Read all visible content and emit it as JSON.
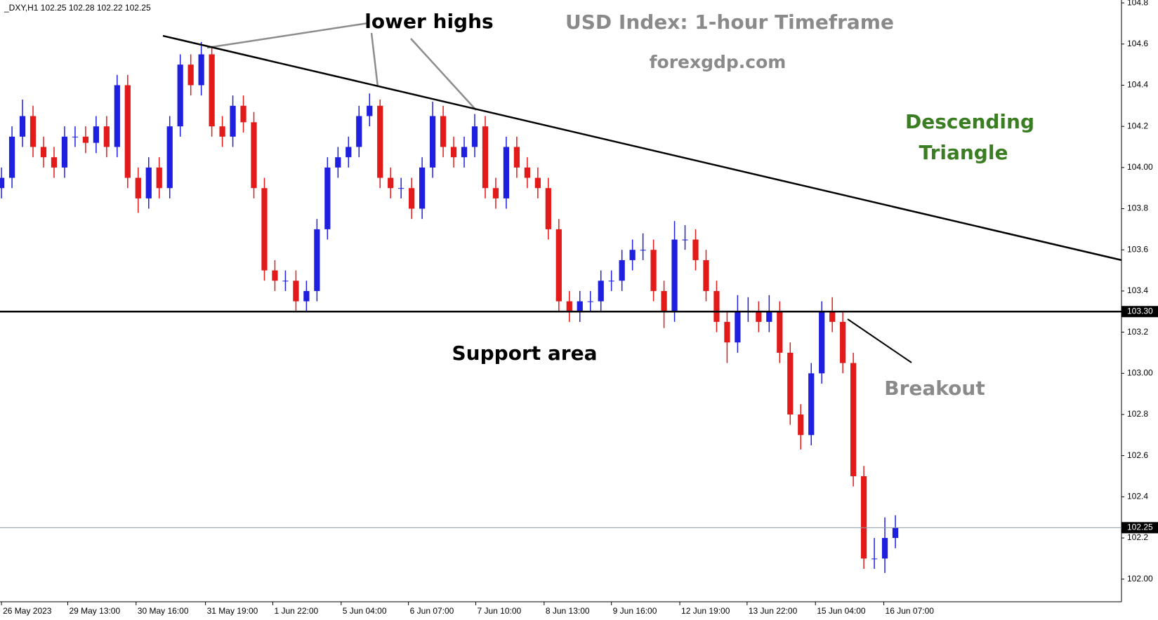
{
  "chart_data": {
    "type": "candlestick",
    "header": "_DXY,H1  102.25 102.28 102.22 102.25",
    "title": "USD Index: 1-hour Timeframe",
    "subtitle": "forexgdp.com",
    "annotations": {
      "lower_highs": "lower highs",
      "pattern_line1": "Descending",
      "pattern_line2": "Triangle",
      "support_text": "Support area",
      "breakout": "Breakout"
    },
    "up_color": "#1f1fe0",
    "down_color": "#e31a1a",
    "open": [
      103.9,
      103.95,
      104.15,
      104.25,
      104.1,
      104.05,
      104.0,
      104.15,
      104.15,
      104.12,
      104.2,
      104.1,
      104.4,
      103.95,
      103.85,
      104.0,
      103.9,
      104.2,
      104.5,
      104.4,
      104.55,
      104.2,
      104.15,
      104.3,
      104.22,
      103.9,
      103.5,
      103.45,
      103.45,
      103.35,
      103.4,
      103.7,
      104.0,
      104.05,
      104.1,
      104.25,
      104.3,
      103.95,
      103.9,
      103.9,
      103.8,
      104.0,
      104.25,
      104.1,
      104.05,
      104.1,
      104.2,
      103.9,
      103.85,
      104.1,
      104.0,
      103.95,
      103.9,
      103.7,
      103.35,
      103.3,
      103.35,
      103.35,
      103.45,
      103.45,
      103.55,
      103.6,
      103.6,
      103.4,
      103.3,
      103.65,
      103.65,
      103.55,
      103.4,
      103.25,
      103.15,
      103.3,
      103.3,
      103.25,
      103.3,
      103.1,
      102.8,
      102.7,
      103.0,
      103.3,
      103.25,
      103.05,
      102.5,
      102.1,
      102.1,
      102.2
    ],
    "high": [
      104.0,
      104.2,
      104.33,
      104.3,
      104.15,
      104.1,
      104.2,
      104.2,
      104.2,
      104.25,
      104.25,
      104.45,
      104.45,
      104.0,
      104.05,
      104.05,
      104.25,
      104.55,
      104.55,
      104.61,
      104.58,
      104.25,
      104.35,
      104.35,
      104.27,
      103.95,
      103.55,
      103.5,
      103.5,
      103.45,
      103.75,
      104.05,
      104.1,
      104.15,
      104.3,
      104.36,
      104.33,
      104.0,
      103.95,
      103.95,
      104.05,
      104.32,
      104.3,
      104.15,
      104.15,
      104.26,
      104.25,
      103.95,
      104.15,
      104.15,
      104.05,
      104.0,
      103.95,
      103.75,
      103.4,
      103.4,
      103.4,
      103.5,
      103.5,
      103.6,
      103.65,
      103.68,
      103.65,
      103.45,
      103.74,
      103.72,
      103.7,
      103.6,
      103.45,
      103.3,
      103.38,
      103.37,
      103.35,
      103.38,
      103.35,
      103.15,
      102.85,
      103.05,
      103.35,
      103.37,
      103.3,
      103.1,
      102.55,
      102.2,
      102.3,
      102.31
    ],
    "low": [
      103.85,
      103.9,
      104.1,
      104.05,
      104.0,
      103.95,
      103.95,
      104.1,
      104.07,
      104.07,
      104.05,
      104.05,
      103.9,
      103.78,
      103.8,
      103.85,
      103.85,
      104.15,
      104.35,
      104.35,
      104.15,
      104.1,
      104.1,
      104.17,
      103.85,
      103.45,
      103.4,
      103.4,
      103.3,
      103.3,
      103.35,
      103.65,
      103.95,
      104.0,
      104.05,
      104.2,
      103.9,
      103.85,
      103.85,
      103.75,
      103.75,
      103.95,
      104.05,
      104.0,
      104.0,
      104.05,
      103.85,
      103.8,
      103.8,
      103.95,
      103.9,
      103.85,
      103.65,
      103.3,
      103.25,
      103.25,
      103.3,
      103.3,
      103.4,
      103.4,
      103.5,
      103.55,
      103.35,
      103.22,
      103.25,
      103.6,
      103.5,
      103.35,
      103.2,
      103.05,
      103.1,
      103.25,
      103.2,
      103.2,
      103.05,
      102.75,
      102.63,
      102.65,
      102.95,
      103.2,
      103.0,
      102.45,
      102.05,
      102.05,
      102.03,
      102.15
    ],
    "close": [
      103.95,
      104.15,
      104.25,
      104.1,
      104.05,
      104.0,
      104.15,
      104.15,
      104.12,
      104.2,
      104.1,
      104.4,
      103.95,
      103.85,
      104.0,
      103.9,
      104.2,
      104.5,
      104.4,
      104.55,
      104.2,
      104.15,
      104.3,
      104.22,
      103.9,
      103.5,
      103.45,
      103.45,
      103.35,
      103.4,
      103.7,
      104.0,
      104.05,
      104.1,
      104.25,
      104.3,
      103.95,
      103.9,
      103.9,
      103.8,
      104.0,
      104.25,
      104.1,
      104.05,
      104.1,
      104.2,
      103.9,
      103.85,
      104.1,
      104.0,
      103.95,
      103.9,
      103.7,
      103.35,
      103.3,
      103.35,
      103.35,
      103.45,
      103.45,
      103.55,
      103.6,
      103.6,
      103.4,
      103.3,
      103.65,
      103.65,
      103.55,
      103.4,
      103.25,
      103.15,
      103.3,
      103.3,
      103.25,
      103.3,
      103.1,
      102.8,
      102.7,
      103.0,
      103.3,
      103.25,
      103.05,
      102.5,
      102.1,
      102.1,
      102.2,
      102.25
    ],
    "xlim": [
      -0.14,
      106.5
    ],
    "xticks": [
      {
        "value": 0,
        "label": "26 May 2023"
      },
      {
        "value": 6.3,
        "label": "29 May 13:00"
      },
      {
        "value": 12.8,
        "label": "30 May 16:00"
      },
      {
        "value": 19.4,
        "label": "31 May 19:00"
      },
      {
        "value": 25.8,
        "label": "1 Jun 22:00"
      },
      {
        "value": 32.3,
        "label": "5 Jun 04:00"
      },
      {
        "value": 38.7,
        "label": "6 Jun 07:00"
      },
      {
        "value": 45.1,
        "label": "7 Jun 10:00"
      },
      {
        "value": 51.6,
        "label": "8 Jun 13:00"
      },
      {
        "value": 58,
        "label": "9 Jun 16:00"
      },
      {
        "value": 64.5,
        "label": "12 Jun 19:00"
      },
      {
        "value": 70.9,
        "label": "13 Jun 22:00"
      },
      {
        "value": 77.4,
        "label": "15 Jun 04:00"
      },
      {
        "value": 83.9,
        "label": "16 Jun 07:00"
      }
    ],
    "ylim": [
      101.89,
      104.814
    ],
    "yticks": [
      {
        "value": 102,
        "label": "102.00"
      },
      102.2,
      102.4,
      102.6,
      102.8,
      {
        "value": 103,
        "label": "103.00"
      },
      103.2,
      103.4,
      103.6,
      103.8,
      {
        "value": 104,
        "label": "104.00"
      },
      104.2,
      104.4,
      104.6,
      104.8
    ],
    "trendline": {
      "x": [
        15.35,
        106.5
      ],
      "y": [
        104.64,
        103.55
      ]
    },
    "support": {
      "value": 103.3,
      "label": "103.30"
    },
    "current_price": 102.25
  }
}
